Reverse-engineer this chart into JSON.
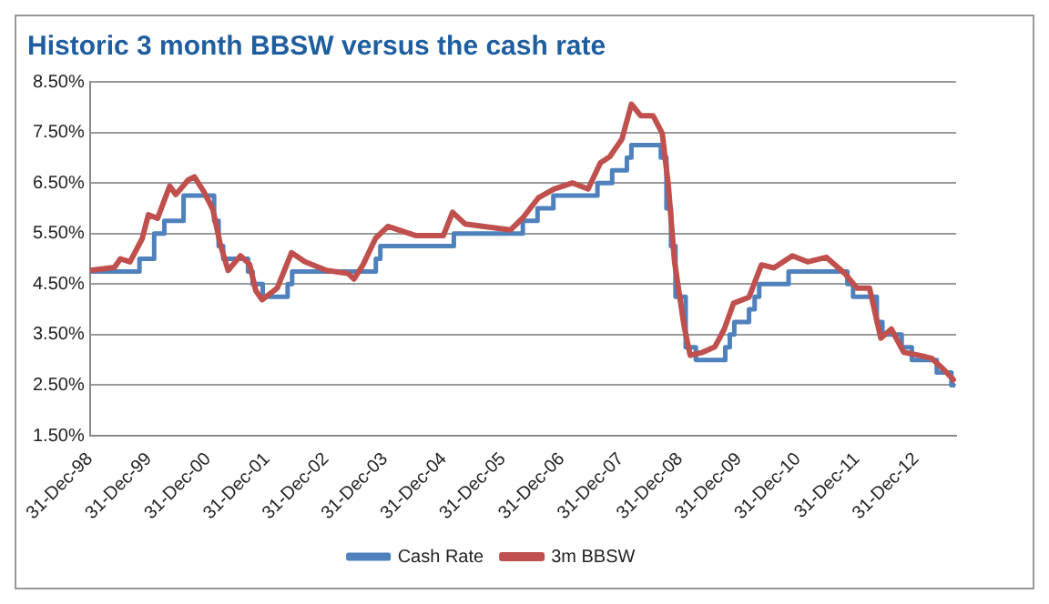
{
  "chart_data": {
    "type": "line",
    "title": "Historic 3 month BBSW versus the cash rate",
    "xlim": [
      "1998-12-31",
      "2013-09-05"
    ],
    "xticks": [
      {
        "value": "1998-12-31",
        "label": "31-Dec-98"
      },
      {
        "value": "1999-12-31",
        "label": "31-Dec-99"
      },
      {
        "value": "2000-12-31",
        "label": "31-Dec-00"
      },
      {
        "value": "2001-12-31",
        "label": "31-Dec-01"
      },
      {
        "value": "2002-12-31",
        "label": "31-Dec-02"
      },
      {
        "value": "2003-12-31",
        "label": "31-Dec-03"
      },
      {
        "value": "2004-12-31",
        "label": "31-Dec-04"
      },
      {
        "value": "2005-12-31",
        "label": "31-Dec-05"
      },
      {
        "value": "2006-12-31",
        "label": "31-Dec-06"
      },
      {
        "value": "2007-12-31",
        "label": "31-Dec-07"
      },
      {
        "value": "2008-12-31",
        "label": "31-Dec-08"
      },
      {
        "value": "2009-12-31",
        "label": "31-Dec-09"
      },
      {
        "value": "2010-12-31",
        "label": "31-Dec-10"
      },
      {
        "value": "2011-12-31",
        "label": "31-Dec-11"
      },
      {
        "value": "2012-12-31",
        "label": "31-Dec-12"
      }
    ],
    "ylim": [
      1.5,
      8.5
    ],
    "yticks": [
      {
        "value": 1.5,
        "label": "1.50%"
      },
      {
        "value": 2.5,
        "label": "2.50%"
      },
      {
        "value": 3.5,
        "label": "3.50%"
      },
      {
        "value": 4.5,
        "label": "4.50%"
      },
      {
        "value": 5.5,
        "label": "5.50%"
      },
      {
        "value": 6.5,
        "label": "6.50%"
      },
      {
        "value": 7.5,
        "label": "7.50%"
      },
      {
        "value": 8.5,
        "label": "8.50%"
      }
    ],
    "grid": "y",
    "legend": "bottom",
    "series": [
      {
        "name": "Cash Rate",
        "type": "step",
        "color": "#4f81bd",
        "x": [
          "1998-12-31",
          "1999-11-03",
          "2000-02-02",
          "2000-04-05",
          "2000-08-02",
          "2001-02-07",
          "2001-03-07",
          "2001-04-04",
          "2001-09-05",
          "2001-10-03",
          "2001-12-05",
          "2002-05-08",
          "2002-06-05",
          "2003-11-05",
          "2003-12-03",
          "2005-03-02",
          "2006-05-03",
          "2006-08-02",
          "2006-11-08",
          "2007-08-08",
          "2007-11-07",
          "2008-02-06",
          "2008-03-05",
          "2008-09-03",
          "2008-10-08",
          "2008-11-05",
          "2008-12-03",
          "2009-02-04",
          "2009-04-08",
          "2009-10-07",
          "2009-11-04",
          "2009-12-02",
          "2010-03-03",
          "2010-04-07",
          "2010-05-05",
          "2010-11-03",
          "2011-11-02",
          "2011-12-07",
          "2012-05-02",
          "2012-06-06",
          "2012-10-03",
          "2012-12-05",
          "2013-05-08",
          "2013-08-07",
          "2013-08-30"
        ],
        "values": [
          4.75,
          5.0,
          5.5,
          5.75,
          6.25,
          5.75,
          5.25,
          5.0,
          4.75,
          4.5,
          4.25,
          4.5,
          4.75,
          5.0,
          5.25,
          5.5,
          5.75,
          6.0,
          6.25,
          6.5,
          6.75,
          7.0,
          7.25,
          7.0,
          6.0,
          5.25,
          4.25,
          3.25,
          3.0,
          3.25,
          3.5,
          3.75,
          4.0,
          4.25,
          4.5,
          4.75,
          4.5,
          4.25,
          3.75,
          3.5,
          3.25,
          3.0,
          2.75,
          2.5,
          2.5
        ]
      },
      {
        "name": "3m BBSW",
        "color": "#c0504d",
        "x": [
          "1998-12-31",
          "1999-06-01",
          "1999-07-08",
          "1999-09-05",
          "1999-11-20",
          "1999-12-28",
          "2000-02-23",
          "2000-05-08",
          "2000-06-15",
          "2000-08-31",
          "2000-10-08",
          "2000-12-05",
          "2001-01-30",
          "2001-03-17",
          "2001-05-05",
          "2001-07-20",
          "2001-09-15",
          "2001-10-23",
          "2001-12-01",
          "2002-03-05",
          "2002-06-01",
          "2002-08-23",
          "2003-01-04",
          "2003-05-16",
          "2003-06-23",
          "2003-08-19",
          "2003-11-04",
          "2004-01-19",
          "2004-07-08",
          "2004-12-27",
          "2005-02-22",
          "2005-05-10",
          "2006-02-15",
          "2006-05-03",
          "2006-08-08",
          "2006-11-11",
          "2007-03-06",
          "2007-06-11",
          "2007-08-26",
          "2007-10-23",
          "2008-01-07",
          "2008-03-05",
          "2008-05-01",
          "2008-07-17",
          "2008-09-12",
          "2008-10-20",
          "2008-11-27",
          "2009-01-25",
          "2009-03-04",
          "2009-05-20",
          "2009-08-04",
          "2009-10-01",
          "2009-11-27",
          "2010-03-03",
          "2010-05-19",
          "2010-08-04",
          "2010-11-26",
          "2011-03-01",
          "2011-06-24",
          "2011-10-17",
          "2011-12-31",
          "2012-03-18",
          "2012-05-27",
          "2012-07-31",
          "2012-10-16",
          "2013-01-20",
          "2013-04-07",
          "2013-06-23",
          "2013-08-30"
        ],
        "values": [
          4.77,
          4.83,
          5.0,
          4.94,
          5.4,
          5.87,
          5.8,
          6.44,
          6.27,
          6.56,
          6.62,
          6.33,
          5.98,
          5.29,
          4.77,
          5.06,
          4.89,
          4.37,
          4.19,
          4.42,
          5.12,
          4.94,
          4.77,
          4.71,
          4.6,
          4.89,
          5.41,
          5.64,
          5.46,
          5.46,
          5.92,
          5.69,
          5.57,
          5.81,
          6.21,
          6.38,
          6.5,
          6.38,
          6.9,
          7.02,
          7.37,
          8.06,
          7.83,
          7.83,
          7.48,
          6.44,
          4.94,
          3.67,
          3.09,
          3.15,
          3.26,
          3.61,
          4.12,
          4.24,
          4.88,
          4.82,
          5.06,
          4.94,
          5.03,
          4.71,
          4.42,
          4.42,
          3.43,
          3.61,
          3.15,
          3.09,
          3.03,
          2.8,
          2.57
        ]
      }
    ]
  }
}
